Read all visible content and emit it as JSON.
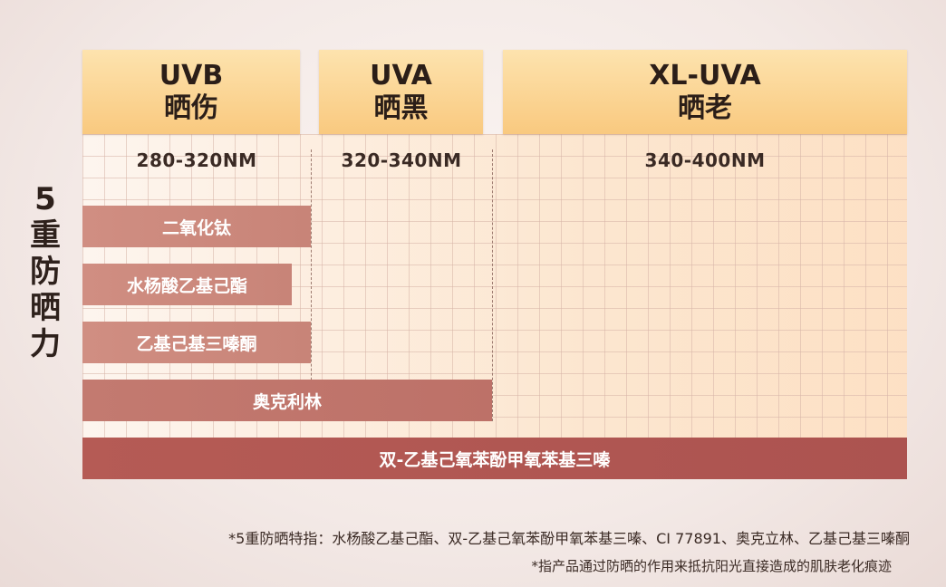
{
  "side_title": [
    "5",
    "重",
    "防",
    "晒",
    "力"
  ],
  "columns": [
    {
      "name": "UVB",
      "effect": "晒伤",
      "range": "280-320NM"
    },
    {
      "name": "UVA",
      "effect": "晒黑",
      "range": "320-340NM"
    },
    {
      "name": "XL-UVA",
      "effect": "晒老",
      "range": "340-400NM"
    }
  ],
  "bars": [
    {
      "label": "二氧化钛"
    },
    {
      "label": "水杨酸乙基己酯"
    },
    {
      "label": "乙基己基三嗪酮"
    },
    {
      "label": "奥克利林"
    },
    {
      "label": "双-乙基己氧苯酚甲氧苯基三嗪"
    }
  ],
  "footnotes": [
    "*5重防晒特指：水杨酸乙基己酯、双-乙基己氧苯酚甲氧苯基三嗪、CI 77891、奥克立林、乙基己基三嗪酮",
    "*指产品通过防晒的作用来抵抗阳光直接造成的肌肤老化痕迹"
  ],
  "colors": {
    "header_top": "#fde3ae",
    "header_bottom": "#f9c97f",
    "bar_light": "#c88478",
    "bar_dark": "#ac5350",
    "grid_bg": "#fbe9da"
  }
}
